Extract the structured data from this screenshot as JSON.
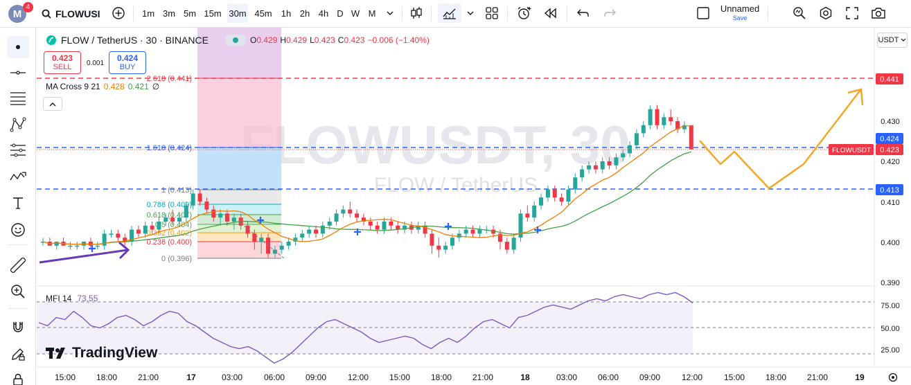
{
  "topbar": {
    "avatar_letter": "M",
    "notifications": "4",
    "symbol": "FLOWUSI",
    "intervals": [
      "1m",
      "3m",
      "5m",
      "15m",
      "30m",
      "45m",
      "1h",
      "2h",
      "4h",
      "D",
      "W",
      "M"
    ],
    "selected_interval": "30m",
    "layout_name": "Unnamed",
    "layout_save": "Save"
  },
  "legend": {
    "title": "FLOW / TetherUS · 30 · BINANCE",
    "o_label": "O",
    "o": "0.429",
    "h_label": "H",
    "h": "0.429",
    "l_label": "L",
    "l": "0.423",
    "c_label": "C",
    "c": "0.423",
    "change": "−0.006 (−1.40%)",
    "sell_price": "0.423",
    "sell_label": "SELL",
    "spread": "0.001",
    "buy_price": "0.424",
    "buy_label": "BUY",
    "ma_name": "MA Cross 9 21",
    "ma_fast": "0.428",
    "ma_slow": "0.421",
    "ma_extra": "∅",
    "mfi_name": "MFI 14",
    "mfi_value": "73.55"
  },
  "watermark": {
    "big": "FLOWUSDT, 30",
    "small": "FLOW / TetherUS"
  },
  "currency": "USDT",
  "fib_labels": [
    "2.618 (0.441)",
    "1.618 (0.424)",
    "1 (0.413)",
    "0.786 (0.409)",
    "0.618 (0.407)",
    "0.5 (0.404)",
    "0.382 (0.402)",
    "0.236 (0.400)",
    "0 (0.396)"
  ],
  "price_axis": {
    "ticks": [
      "0.430",
      "0.420",
      "0.410",
      "0.400",
      "0.390"
    ],
    "tags": {
      "target": "0.441",
      "buy": "0.424",
      "sell": "0.423",
      "level": "0.413"
    },
    "symbol_tag": "FLOWUSDT"
  },
  "mfi_axis": {
    "ticks": [
      "75.00",
      "50.00",
      "25.00"
    ]
  },
  "time_axis": [
    "15:00",
    "18:00",
    "21:00",
    "17",
    "03:00",
    "06:00",
    "09:00",
    "12:00",
    "15:00",
    "18:00",
    "21:00",
    "18",
    "03:00",
    "06:00",
    "09:00",
    "12:00",
    "15:00",
    "18:00",
    "21:00",
    "19"
  ],
  "brand": "TradingView",
  "colors": {
    "up": "#26a69a",
    "down": "#f23645",
    "ma_fast": "#f57c00",
    "ma_slow": "#43a047",
    "mfi": "#7e57c2",
    "accent": "#2962ff",
    "projection": "#f5a623"
  },
  "chart_data": {
    "type": "candlestick",
    "price_range": [
      0.389,
      0.446
    ],
    "candles_ohlc": [
      [
        0.4,
        0.401,
        0.399,
        0.4
      ],
      [
        0.4,
        0.401,
        0.399,
        0.399
      ],
      [
        0.399,
        0.4,
        0.398,
        0.4
      ],
      [
        0.4,
        0.401,
        0.399,
        0.399
      ],
      [
        0.399,
        0.4,
        0.398,
        0.399
      ],
      [
        0.399,
        0.4,
        0.398,
        0.399
      ],
      [
        0.399,
        0.4,
        0.398,
        0.4
      ],
      [
        0.4,
        0.401,
        0.398,
        0.399
      ],
      [
        0.399,
        0.4,
        0.398,
        0.399
      ],
      [
        0.399,
        0.403,
        0.398,
        0.402
      ],
      [
        0.402,
        0.403,
        0.401,
        0.402
      ],
      [
        0.402,
        0.403,
        0.4,
        0.401
      ],
      [
        0.401,
        0.402,
        0.399,
        0.4
      ],
      [
        0.4,
        0.404,
        0.399,
        0.403
      ],
      [
        0.403,
        0.404,
        0.401,
        0.402
      ],
      [
        0.402,
        0.405,
        0.401,
        0.404
      ],
      [
        0.404,
        0.405,
        0.402,
        0.403
      ],
      [
        0.403,
        0.406,
        0.402,
        0.405
      ],
      [
        0.405,
        0.407,
        0.404,
        0.406
      ],
      [
        0.406,
        0.408,
        0.404,
        0.405
      ],
      [
        0.405,
        0.407,
        0.404,
        0.406
      ],
      [
        0.406,
        0.41,
        0.405,
        0.409
      ],
      [
        0.409,
        0.413,
        0.408,
        0.412
      ],
      [
        0.412,
        0.413,
        0.409,
        0.41
      ],
      [
        0.41,
        0.411,
        0.407,
        0.408
      ],
      [
        0.408,
        0.409,
        0.405,
        0.406
      ],
      [
        0.406,
        0.408,
        0.404,
        0.407
      ],
      [
        0.407,
        0.408,
        0.404,
        0.405
      ],
      [
        0.405,
        0.407,
        0.403,
        0.406
      ],
      [
        0.406,
        0.407,
        0.403,
        0.404
      ],
      [
        0.404,
        0.405,
        0.401,
        0.402
      ],
      [
        0.402,
        0.403,
        0.398,
        0.4
      ],
      [
        0.4,
        0.402,
        0.397,
        0.401
      ],
      [
        0.401,
        0.402,
        0.396,
        0.397
      ],
      [
        0.397,
        0.399,
        0.396,
        0.398
      ],
      [
        0.398,
        0.4,
        0.397,
        0.399
      ],
      [
        0.399,
        0.401,
        0.398,
        0.4
      ],
      [
        0.4,
        0.402,
        0.399,
        0.401
      ],
      [
        0.401,
        0.403,
        0.4,
        0.402
      ],
      [
        0.402,
        0.404,
        0.401,
        0.403
      ],
      [
        0.403,
        0.404,
        0.401,
        0.402
      ],
      [
        0.402,
        0.405,
        0.401,
        0.404
      ],
      [
        0.404,
        0.406,
        0.403,
        0.405
      ],
      [
        0.405,
        0.408,
        0.404,
        0.407
      ],
      [
        0.407,
        0.409,
        0.406,
        0.408
      ],
      [
        0.408,
        0.41,
        0.406,
        0.407
      ],
      [
        0.407,
        0.408,
        0.405,
        0.406
      ],
      [
        0.406,
        0.407,
        0.404,
        0.405
      ],
      [
        0.405,
        0.406,
        0.403,
        0.404
      ],
      [
        0.404,
        0.405,
        0.402,
        0.403
      ],
      [
        0.403,
        0.406,
        0.402,
        0.405
      ],
      [
        0.405,
        0.406,
        0.403,
        0.404
      ],
      [
        0.404,
        0.405,
        0.402,
        0.403
      ],
      [
        0.403,
        0.405,
        0.402,
        0.404
      ],
      [
        0.404,
        0.405,
        0.402,
        0.403
      ],
      [
        0.403,
        0.405,
        0.402,
        0.404
      ],
      [
        0.404,
        0.405,
        0.401,
        0.402
      ],
      [
        0.402,
        0.403,
        0.397,
        0.399
      ],
      [
        0.399,
        0.401,
        0.396,
        0.398
      ],
      [
        0.398,
        0.4,
        0.397,
        0.399
      ],
      [
        0.399,
        0.402,
        0.398,
        0.401
      ],
      [
        0.401,
        0.403,
        0.4,
        0.402
      ],
      [
        0.402,
        0.404,
        0.401,
        0.403
      ],
      [
        0.403,
        0.404,
        0.401,
        0.402
      ],
      [
        0.402,
        0.404,
        0.401,
        0.403
      ],
      [
        0.403,
        0.404,
        0.402,
        0.403
      ],
      [
        0.403,
        0.404,
        0.401,
        0.402
      ],
      [
        0.402,
        0.403,
        0.398,
        0.4
      ],
      [
        0.4,
        0.401,
        0.397,
        0.398
      ],
      [
        0.398,
        0.402,
        0.397,
        0.401
      ],
      [
        0.401,
        0.408,
        0.4,
        0.407
      ],
      [
        0.407,
        0.409,
        0.405,
        0.406
      ],
      [
        0.406,
        0.41,
        0.405,
        0.409
      ],
      [
        0.409,
        0.412,
        0.408,
        0.411
      ],
      [
        0.411,
        0.414,
        0.41,
        0.413
      ],
      [
        0.413,
        0.414,
        0.41,
        0.411
      ],
      [
        0.411,
        0.412,
        0.409,
        0.41
      ],
      [
        0.41,
        0.414,
        0.409,
        0.413
      ],
      [
        0.413,
        0.417,
        0.412,
        0.416
      ],
      [
        0.416,
        0.419,
        0.415,
        0.418
      ],
      [
        0.418,
        0.42,
        0.417,
        0.419
      ],
      [
        0.419,
        0.42,
        0.417,
        0.418
      ],
      [
        0.418,
        0.421,
        0.417,
        0.42
      ],
      [
        0.42,
        0.421,
        0.418,
        0.419
      ],
      [
        0.419,
        0.422,
        0.418,
        0.421
      ],
      [
        0.421,
        0.423,
        0.42,
        0.422
      ],
      [
        0.422,
        0.425,
        0.421,
        0.424
      ],
      [
        0.424,
        0.428,
        0.423,
        0.427
      ],
      [
        0.427,
        0.43,
        0.426,
        0.429
      ],
      [
        0.429,
        0.434,
        0.428,
        0.433
      ],
      [
        0.433,
        0.434,
        0.428,
        0.429
      ],
      [
        0.429,
        0.432,
        0.428,
        0.431
      ],
      [
        0.431,
        0.433,
        0.429,
        0.43
      ],
      [
        0.43,
        0.431,
        0.427,
        0.428
      ],
      [
        0.428,
        0.43,
        0.427,
        0.429
      ],
      [
        0.429,
        0.429,
        0.423,
        0.423
      ]
    ],
    "mfi_range": [
      12,
      90
    ],
    "mfi": [
      55,
      52,
      60,
      58,
      66,
      60,
      52,
      50,
      54,
      60,
      62,
      58,
      52,
      56,
      62,
      66,
      64,
      56,
      52,
      46,
      40,
      36,
      32,
      30,
      32,
      28,
      22,
      16,
      20,
      26,
      34,
      42,
      50,
      56,
      58,
      54,
      50,
      46,
      40,
      36,
      38,
      40,
      42,
      40,
      34,
      30,
      36,
      40,
      36,
      42,
      50,
      56,
      58,
      54,
      50,
      60,
      62,
      66,
      70,
      72,
      70,
      68,
      72,
      76,
      78,
      76,
      80,
      82,
      80,
      78,
      82,
      84,
      82,
      84,
      80,
      74
    ]
  }
}
